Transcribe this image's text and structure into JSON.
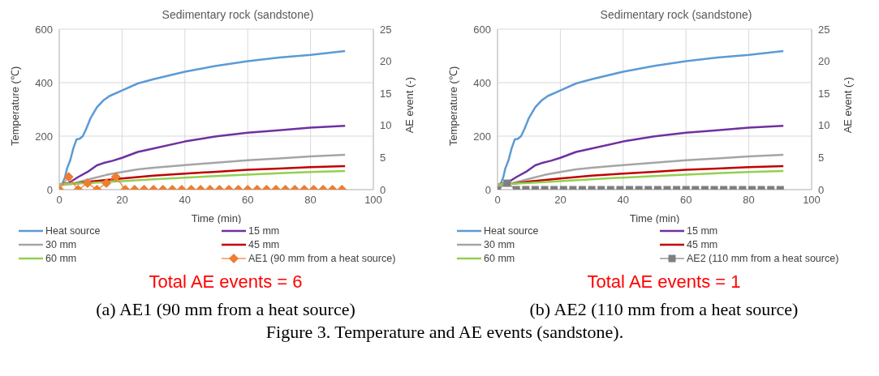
{
  "chart_data": [
    {
      "type": "line",
      "title": "Sedimentary rock (sandstone)",
      "xlabel": "Time (min)",
      "ylabel": "Temperature (℃)",
      "y2label": "AE event (-)",
      "xlim": [
        0,
        100
      ],
      "xticks": [
        0,
        20,
        40,
        60,
        80,
        100
      ],
      "ylim": [
        0,
        600
      ],
      "yticks": [
        0,
        200,
        400,
        600
      ],
      "y2lim": [
        0,
        25
      ],
      "y2ticks": [
        0,
        5,
        10,
        15,
        20,
        25
      ],
      "grid": true,
      "legend": "bottom",
      "line_style": "solid",
      "annotations": [
        "Total AE events = 6",
        "(a) AE1 (90 mm from a heat source)",
        "Figure 3. Temperature and AE events (sandstone)."
      ],
      "series": [
        {
          "name": "Heat source",
          "color": "#5b9bd5",
          "marker": "none",
          "x": [
            0,
            1,
            1.8,
            2.5,
            3.5,
            4.5,
            5.5,
            6.5,
            7.5,
            8.5,
            10,
            12,
            14,
            16,
            20,
            25,
            30,
            40,
            50,
            60,
            70,
            80,
            91
          ],
          "values": [
            20,
            22,
            45,
            80,
            110,
            155,
            188,
            190,
            200,
            225,
            268,
            308,
            333,
            350,
            371,
            397,
            413,
            441,
            463,
            480,
            494,
            504,
            518
          ]
        },
        {
          "name": "15 mm",
          "color": "#7030a0",
          "marker": "none",
          "x": [
            0,
            3,
            6,
            9,
            12,
            14,
            17,
            20,
            25,
            30,
            40,
            50,
            60,
            70,
            80,
            91
          ],
          "values": [
            20,
            25,
            47,
            66,
            91,
            99,
            108,
            119,
            141,
            154,
            180,
            199,
            213,
            222,
            232,
            239
          ]
        },
        {
          "name": "30 mm",
          "color": "#a5a5a5",
          "marker": "none",
          "x": [
            0,
            5,
            10,
            15,
            20,
            25,
            30,
            40,
            50,
            60,
            70,
            80,
            91
          ],
          "values": [
            20,
            25,
            40,
            55,
            66,
            76,
            82,
            92,
            101,
            110,
            117,
            124,
            130
          ]
        },
        {
          "name": "45 mm",
          "color": "#c00000",
          "marker": "none",
          "x": [
            0,
            5,
            10,
            20,
            30,
            40,
            50,
            60,
            70,
            80,
            91
          ],
          "values": [
            20,
            22,
            30,
            42,
            52,
            60,
            67,
            74,
            79,
            84,
            88
          ]
        },
        {
          "name": "60 mm",
          "color": "#92d050",
          "marker": "none",
          "x": [
            0,
            10,
            20,
            30,
            40,
            50,
            60,
            70,
            80,
            91
          ],
          "values": [
            20,
            25,
            32,
            39,
            45,
            51,
            56,
            61,
            66,
            70
          ]
        },
        {
          "name": "AE1 (90 mm from a heat source)",
          "color": "#ed7d31",
          "marker": "diamond",
          "axis": "y2",
          "x": [
            0,
            3,
            6,
            9,
            12,
            15,
            18,
            21,
            24,
            27,
            30,
            33,
            36,
            39,
            42,
            45,
            48,
            51,
            54,
            57,
            60,
            63,
            66,
            69,
            72,
            75,
            78,
            81,
            84,
            87,
            90
          ],
          "values": [
            0,
            2,
            0,
            1,
            0,
            1,
            2,
            0,
            0,
            0,
            0,
            0,
            0,
            0,
            0,
            0,
            0,
            0,
            0,
            0,
            0,
            0,
            0,
            0,
            0,
            0,
            0,
            0,
            0,
            0,
            0
          ]
        }
      ]
    },
    {
      "type": "line",
      "title": "Sedimentary rock (sandstone)",
      "xlabel": "Time (min)",
      "ylabel": "Temperature (℃)",
      "y2label": "AE event (-)",
      "xlim": [
        0,
        100
      ],
      "xticks": [
        0,
        20,
        40,
        60,
        80,
        100
      ],
      "ylim": [
        0,
        600
      ],
      "yticks": [
        0,
        200,
        400,
        600
      ],
      "y2lim": [
        0,
        25
      ],
      "y2ticks": [
        0,
        5,
        10,
        15,
        20,
        25
      ],
      "grid": true,
      "legend": "bottom",
      "line_style": "solid",
      "annotations": [
        "Total AE events = 1",
        "(b) AE2 (110 mm from a heat source)"
      ],
      "series": [
        {
          "name": "Heat source",
          "color": "#5b9bd5",
          "marker": "none",
          "x": [
            0,
            1,
            1.8,
            2.5,
            3.5,
            4.5,
            5.5,
            6.5,
            7.5,
            8.5,
            10,
            12,
            14,
            16,
            20,
            25,
            30,
            40,
            50,
            60,
            70,
            80,
            91
          ],
          "values": [
            20,
            22,
            45,
            80,
            110,
            155,
            188,
            190,
            200,
            225,
            268,
            308,
            333,
            350,
            371,
            397,
            413,
            441,
            463,
            480,
            494,
            504,
            518
          ]
        },
        {
          "name": "15 mm",
          "color": "#7030a0",
          "marker": "none",
          "x": [
            0,
            3,
            6,
            9,
            12,
            14,
            17,
            20,
            25,
            30,
            40,
            50,
            60,
            70,
            80,
            91
          ],
          "values": [
            20,
            25,
            47,
            66,
            91,
            99,
            108,
            119,
            141,
            154,
            180,
            199,
            213,
            222,
            232,
            239
          ]
        },
        {
          "name": "30 mm",
          "color": "#a5a5a5",
          "marker": "none",
          "x": [
            0,
            5,
            10,
            15,
            20,
            25,
            30,
            40,
            50,
            60,
            70,
            80,
            91
          ],
          "values": [
            20,
            25,
            40,
            55,
            66,
            76,
            82,
            92,
            101,
            110,
            117,
            124,
            130
          ]
        },
        {
          "name": "45 mm",
          "color": "#c00000",
          "marker": "none",
          "x": [
            0,
            5,
            10,
            20,
            30,
            40,
            50,
            60,
            70,
            80,
            91
          ],
          "values": [
            20,
            22,
            30,
            42,
            52,
            60,
            67,
            74,
            79,
            84,
            88
          ]
        },
        {
          "name": "60 mm",
          "color": "#92d050",
          "marker": "none",
          "x": [
            0,
            10,
            20,
            30,
            40,
            50,
            60,
            70,
            80,
            91
          ],
          "values": [
            20,
            25,
            32,
            39,
            45,
            51,
            56,
            61,
            66,
            70
          ]
        },
        {
          "name": "AE2 (110 mm from a heat source)",
          "color": "#7f7f7f",
          "marker": "square",
          "axis": "y2",
          "x": [
            0,
            3,
            6,
            9,
            12,
            15,
            18,
            21,
            24,
            27,
            30,
            33,
            36,
            39,
            42,
            45,
            48,
            51,
            54,
            57,
            60,
            63,
            66,
            69,
            72,
            75,
            78,
            81,
            84,
            87,
            90
          ],
          "values": [
            0,
            1,
            0,
            0,
            0,
            0,
            0,
            0,
            0,
            0,
            0,
            0,
            0,
            0,
            0,
            0,
            0,
            0,
            0,
            0,
            0,
            0,
            0,
            0,
            0,
            0,
            0,
            0,
            0,
            0,
            0
          ]
        }
      ]
    }
  ]
}
